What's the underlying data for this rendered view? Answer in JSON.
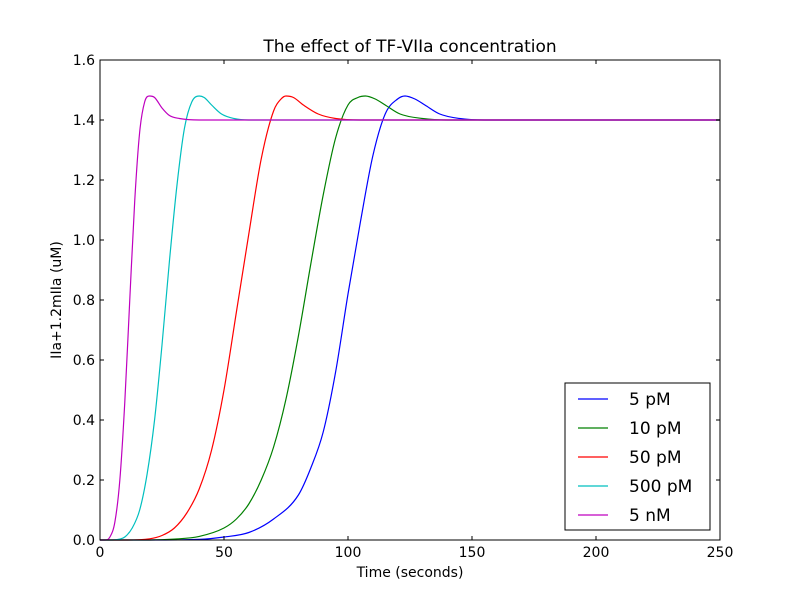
{
  "chart_data": {
    "type": "line",
    "title": "The effect of TF-VIIa concentration",
    "xlabel": "Time (seconds)",
    "ylabel": "IIa+1.2mIIa (uM)",
    "xlim": [
      0,
      250
    ],
    "ylim": [
      0,
      1.6
    ],
    "xticks": [
      0,
      50,
      100,
      150,
      200,
      250
    ],
    "yticks": [
      0.0,
      0.2,
      0.4,
      0.6,
      0.8,
      1.0,
      1.2,
      1.4,
      1.6
    ],
    "xtick_labels": [
      "0",
      "50",
      "100",
      "150",
      "200",
      "250"
    ],
    "ytick_labels": [
      "0.0",
      "0.2",
      "0.4",
      "0.6",
      "0.8",
      "1.0",
      "1.2",
      "1.4",
      "1.6"
    ],
    "grid": false,
    "legend_position": "lower-right",
    "series": [
      {
        "name": "5 pM",
        "color": "#0000ff",
        "x": [
          0,
          20,
          40,
          50,
          60,
          70,
          80,
          85,
          90,
          95,
          100,
          105,
          110,
          115,
          120,
          123,
          127,
          131,
          137,
          145,
          155,
          170,
          250
        ],
        "y": [
          0,
          0.0,
          0.002,
          0.01,
          0.025,
          0.07,
          0.15,
          0.24,
          0.36,
          0.56,
          0.82,
          1.06,
          1.28,
          1.42,
          1.47,
          1.48,
          1.47,
          1.45,
          1.42,
          1.405,
          1.4,
          1.4,
          1.4
        ]
      },
      {
        "name": "10 pM",
        "color": "#008000",
        "x": [
          0,
          20,
          30,
          40,
          50,
          55,
          60,
          65,
          70,
          75,
          80,
          85,
          90,
          95,
          100,
          104,
          107,
          111,
          115,
          121,
          130,
          140,
          250
        ],
        "y": [
          0,
          0.0,
          0.003,
          0.012,
          0.04,
          0.07,
          0.12,
          0.2,
          0.31,
          0.47,
          0.68,
          0.92,
          1.15,
          1.34,
          1.45,
          1.475,
          1.48,
          1.47,
          1.45,
          1.42,
          1.405,
          1.4,
          1.4
        ]
      },
      {
        "name": "50 pM",
        "color": "#ff0000",
        "x": [
          0,
          10,
          20,
          25,
          30,
          35,
          40,
          45,
          50,
          55,
          60,
          65,
          70,
          73,
          75,
          78,
          82,
          88,
          95,
          105,
          120,
          250
        ],
        "y": [
          0,
          0.0,
          0.004,
          0.015,
          0.04,
          0.09,
          0.17,
          0.3,
          0.5,
          0.76,
          1.02,
          1.27,
          1.43,
          1.47,
          1.48,
          1.475,
          1.45,
          1.42,
          1.405,
          1.4,
          1.4,
          1.4
        ]
      },
      {
        "name": "500 pM",
        "color": "#00bfbf",
        "x": [
          0,
          5,
          8,
          10,
          13,
          16,
          19,
          22,
          25,
          28,
          31,
          34,
          37,
          40,
          42,
          45,
          49,
          54,
          60,
          70,
          250
        ],
        "y": [
          0,
          0.0,
          0.003,
          0.01,
          0.04,
          0.1,
          0.22,
          0.4,
          0.65,
          0.93,
          1.18,
          1.37,
          1.46,
          1.48,
          1.475,
          1.45,
          1.42,
          1.405,
          1.4,
          1.4,
          1.4
        ]
      },
      {
        "name": "5 nM",
        "color": "#bf00bf",
        "x": [
          0,
          2,
          4,
          6,
          8,
          10,
          12,
          14,
          16,
          18,
          20,
          22,
          25,
          28,
          32,
          40,
          250
        ],
        "y": [
          0,
          0.0,
          0.01,
          0.06,
          0.2,
          0.46,
          0.8,
          1.13,
          1.36,
          1.46,
          1.48,
          1.475,
          1.44,
          1.415,
          1.405,
          1.4,
          1.4
        ]
      }
    ]
  }
}
